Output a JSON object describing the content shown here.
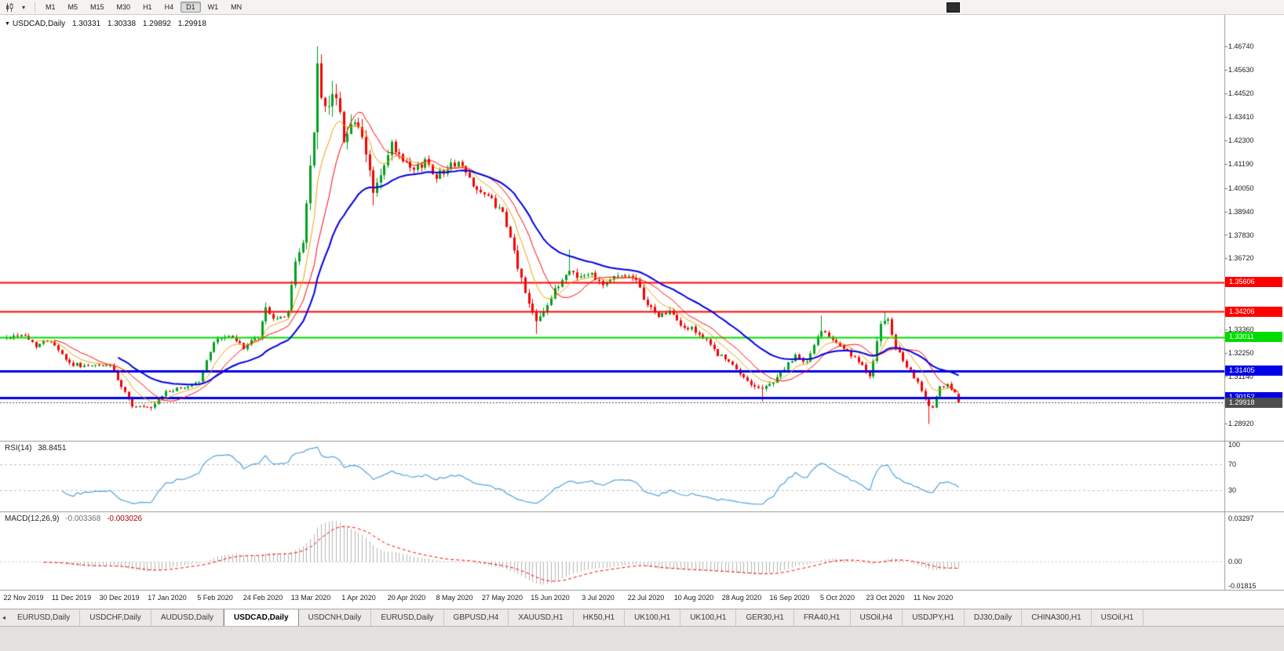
{
  "toolbar": {
    "chart_icon": "candlestick-chart-icon",
    "dropdown_icon": "chevron-down-icon",
    "timeframes": [
      "M1",
      "M5",
      "M15",
      "M30",
      "H1",
      "H4",
      "D1",
      "W1",
      "MN"
    ],
    "active_timeframe": "D1"
  },
  "chart_header": {
    "collapse_icon": "triangle-down-icon",
    "symbol": "USDCAD,Daily",
    "open": "1.30331",
    "high": "1.30338",
    "low": "1.29892",
    "close": "1.29918"
  },
  "rsi_panel": {
    "title": "RSI(14)",
    "value": "38.8451",
    "line_color": "#4fa3dc",
    "level_line_color": "#c0c0c0",
    "levels": [
      70,
      30
    ],
    "axis_labels": [
      {
        "text": "100",
        "value": 100
      },
      {
        "text": "70",
        "value": 70
      },
      {
        "text": "30",
        "value": 30
      }
    ]
  },
  "macd_panel": {
    "title": "MACD(12,26,9)",
    "main_value": "-0.003368",
    "signal_value": "-0.003026",
    "histogram_color": "#b4b4b4",
    "signal_color": "#ff0000",
    "axis_labels": [
      {
        "text": "0.03297",
        "value": 0.03297
      },
      {
        "text": "0.00",
        "value": 0.0
      },
      {
        "text": "-0.01815",
        "value": -0.01815
      }
    ]
  },
  "tabs": {
    "scroll_icon": "tab-scroll-left-icon",
    "active_index": 3,
    "items": [
      "EURUSD,Daily",
      "USDCHF,Daily",
      "AUDUSD,Daily",
      "USDCAD,Daily",
      "USDCNH,Daily",
      "EURUSD,Daily",
      "GBPUSD,H4",
      "XAUUSD,H1",
      "HK50,H1",
      "UK100,H1",
      "UK100,H1",
      "GER30,H1",
      "FRA40,H1",
      "USOil,H4",
      "USDJPY,H1",
      "DJ30,Daily",
      "CHINA300,H1",
      "USOil,H1"
    ]
  },
  "colors": {
    "bull_candle": "#00a020",
    "bear_candle": "#f40000",
    "separator": "#9b9992",
    "current_price_line": "#707070",
    "current_price_badge": "#4d4d4d"
  },
  "chart_data": {
    "type": "candlestick",
    "symbol": "USDCAD",
    "period": "Daily",
    "ohlc_current": {
      "open": 1.30331,
      "high": 1.30338,
      "low": 1.29892,
      "close": 1.29918
    },
    "y_axis": {
      "ticks": [
        {
          "label": "1.46740",
          "price": 1.4674
        },
        {
          "label": "1.45630",
          "price": 1.4563
        },
        {
          "label": "1.44520",
          "price": 1.4452
        },
        {
          "label": "1.43410",
          "price": 1.4341
        },
        {
          "label": "1.42300",
          "price": 1.423
        },
        {
          "label": "1.41190",
          "price": 1.4119
        },
        {
          "label": "1.40050",
          "price": 1.4005
        },
        {
          "label": "1.38940",
          "price": 1.3894
        },
        {
          "label": "1.37830",
          "price": 1.3783
        },
        {
          "label": "1.36720",
          "price": 1.3672
        },
        {
          "label": "1.33360",
          "price": 1.3336
        },
        {
          "label": "1.32250",
          "price": 1.3225
        },
        {
          "label": "1.31140",
          "price": 1.3114
        },
        {
          "label": "1.28920",
          "price": 1.2892
        }
      ]
    },
    "x_axis": {
      "labels": [
        "22 Nov 2019",
        "11 Dec 2019",
        "30 Dec 2019",
        "17 Jan 2020",
        "5 Feb 2020",
        "24 Feb 2020",
        "13 Mar 2020",
        "1 Apr 2020",
        "20 Apr 2020",
        "8 May 2020",
        "27 May 2020",
        "15 Jun 2020",
        "3 Jul 2020",
        "22 Jul 2020",
        "10 Aug 2020",
        "28 Aug 2020",
        "16 Sep 2020",
        "5 Oct 2020",
        "23 Oct 2020",
        "11 Nov 2020"
      ]
    },
    "price_lines": [
      {
        "label": "1.35606",
        "price": 1.35606,
        "color": "#ff0000",
        "width": 2,
        "dashed": false,
        "role": "resistance"
      },
      {
        "label": "1.34206",
        "price": 1.34206,
        "color": "#ff0000",
        "width": 2,
        "dashed": false,
        "role": "resistance"
      },
      {
        "label": "1.33011",
        "price": 1.33011,
        "color": "#00dc00",
        "width": 2,
        "dashed": false,
        "role": "level"
      },
      {
        "label": "1.31405",
        "price": 1.31405,
        "color": "#0000e6",
        "width": 3,
        "dashed": false,
        "role": "support"
      },
      {
        "label": "1.30152",
        "price": 1.30152,
        "color": "#0000e6",
        "width": 3,
        "dashed": false,
        "role": "support"
      },
      {
        "label": "1.29918",
        "price": 1.29918,
        "color": "#4d4d4d",
        "width": 1,
        "dashed": true,
        "role": "current-price"
      }
    ],
    "moving_averages": [
      {
        "period": 8,
        "method": "ema",
        "color": "#e8a200",
        "width": 1
      },
      {
        "period": 13,
        "method": "sma",
        "color": "#ff0000",
        "width": 1
      },
      {
        "period": 30,
        "method": "ema",
        "color": "#0000e0",
        "width": 2
      }
    ],
    "candle_count": 258,
    "price_path_anchors": [
      [
        0,
        1.3295,
        0.003
      ],
      [
        4,
        1.3315,
        0.0028
      ],
      [
        8,
        1.3262,
        0.0026
      ],
      [
        12,
        1.3288,
        0.0024
      ],
      [
        17,
        1.3175,
        0.0026
      ],
      [
        22,
        1.3162,
        0.002
      ],
      [
        28,
        1.3168,
        0.002
      ],
      [
        31,
        1.306,
        0.003
      ],
      [
        34,
        1.2978,
        0.0024
      ],
      [
        39,
        1.2962,
        0.0018
      ],
      [
        43,
        1.3042,
        0.0022
      ],
      [
        48,
        1.3062,
        0.002
      ],
      [
        52,
        1.3092,
        0.0022
      ],
      [
        56,
        1.3282,
        0.0028
      ],
      [
        60,
        1.3308,
        0.0024
      ],
      [
        64,
        1.3252,
        0.0024
      ],
      [
        68,
        1.3302,
        0.0026
      ],
      [
        70,
        1.3438,
        0.0034
      ],
      [
        73,
        1.3378,
        0.003
      ],
      [
        76,
        1.342,
        0.0034
      ],
      [
        78,
        1.3648,
        0.007
      ],
      [
        80,
        1.3758,
        0.009
      ],
      [
        82,
        1.4105,
        0.015
      ],
      [
        84,
        1.4528,
        0.0185
      ],
      [
        86,
        1.4352,
        0.015
      ],
      [
        88,
        1.449,
        0.013
      ],
      [
        91,
        1.4258,
        0.011
      ],
      [
        94,
        1.4322,
        0.009
      ],
      [
        97,
        1.4162,
        0.008
      ],
      [
        99,
        1.3992,
        0.007
      ],
      [
        102,
        1.4098,
        0.0062
      ],
      [
        104,
        1.4205,
        0.006
      ],
      [
        107,
        1.4122,
        0.0055
      ],
      [
        110,
        1.4082,
        0.005
      ],
      [
        113,
        1.4135,
        0.0048
      ],
      [
        116,
        1.4062,
        0.0046
      ],
      [
        119,
        1.4102,
        0.0044
      ],
      [
        122,
        1.4128,
        0.0042
      ],
      [
        125,
        1.4048,
        0.004
      ],
      [
        128,
        1.3982,
        0.004
      ],
      [
        131,
        1.3948,
        0.0038
      ],
      [
        134,
        1.3878,
        0.004
      ],
      [
        137,
        1.3702,
        0.0055
      ],
      [
        140,
        1.3505,
        0.0055
      ],
      [
        143,
        1.3388,
        0.0048
      ],
      [
        146,
        1.3452,
        0.0042
      ],
      [
        149,
        1.3548,
        0.004
      ],
      [
        152,
        1.3618,
        0.0044
      ],
      [
        155,
        1.3582,
        0.0038
      ],
      [
        158,
        1.3602,
        0.0036
      ],
      [
        161,
        1.3552,
        0.0034
      ],
      [
        164,
        1.3582,
        0.0032
      ],
      [
        167,
        1.3598,
        0.0032
      ],
      [
        170,
        1.3558,
        0.0032
      ],
      [
        173,
        1.3452,
        0.0034
      ],
      [
        176,
        1.3402,
        0.0032
      ],
      [
        179,
        1.3422,
        0.003
      ],
      [
        182,
        1.3352,
        0.003
      ],
      [
        186,
        1.3332,
        0.0032
      ],
      [
        189,
        1.3278,
        0.003
      ],
      [
        192,
        1.3222,
        0.0028
      ],
      [
        195,
        1.3182,
        0.0028
      ],
      [
        198,
        1.3122,
        0.0028
      ],
      [
        201,
        1.3082,
        0.0028
      ],
      [
        204,
        1.3052,
        0.003
      ],
      [
        207,
        1.3092,
        0.0028
      ],
      [
        210,
        1.3152,
        0.0028
      ],
      [
        213,
        1.3208,
        0.0028
      ],
      [
        216,
        1.3182,
        0.0026
      ],
      [
        220,
        1.3338,
        0.0036
      ],
      [
        223,
        1.3298,
        0.003
      ],
      [
        226,
        1.3248,
        0.0028
      ],
      [
        230,
        1.3178,
        0.0028
      ],
      [
        233,
        1.3122,
        0.0028
      ],
      [
        236,
        1.3355,
        0.0055
      ],
      [
        238,
        1.3368,
        0.005
      ],
      [
        240,
        1.3252,
        0.0036
      ],
      [
        243,
        1.3152,
        0.003
      ],
      [
        246,
        1.3098,
        0.003
      ],
      [
        248,
        1.2992,
        0.0036
      ],
      [
        250,
        1.2965,
        0.003
      ],
      [
        252,
        1.3058,
        0.0028
      ],
      [
        254,
        1.3072,
        0.0024
      ],
      [
        256,
        1.3042,
        0.0022
      ],
      [
        257,
        1.29918,
        0.0012
      ]
    ],
    "wick_overrides": {
      "highs": [
        [
          70,
          1.3464
        ],
        [
          84,
          1.4674
        ],
        [
          152,
          1.3715
        ],
        [
          220,
          1.3402
        ],
        [
          237,
          1.3418
        ]
      ],
      "lows": [
        [
          39,
          1.29525
        ],
        [
          99,
          1.3922
        ],
        [
          143,
          1.3316
        ],
        [
          204,
          1.2995
        ],
        [
          249,
          1.289
        ]
      ]
    },
    "last_candle": {
      "open": 1.30331,
      "high": 1.30338,
      "low": 1.29892,
      "close": 1.29918
    },
    "indicators": {
      "rsi": {
        "period": 14,
        "current": 38.8451
      },
      "macd": {
        "fast": 12,
        "slow": 26,
        "signal": 9,
        "current_main": -0.003368,
        "current_signal": -0.003026
      }
    }
  }
}
